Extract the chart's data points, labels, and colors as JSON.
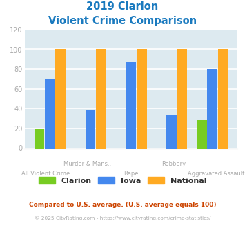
{
  "title_line1": "2019 Clarion",
  "title_line2": "Violent Crime Comparison",
  "title_color": "#1a7abf",
  "clarion": [
    19,
    0,
    0,
    0,
    29
  ],
  "iowa": [
    70,
    39,
    87,
    33,
    80
  ],
  "national": [
    100,
    100,
    100,
    100,
    100
  ],
  "clarion_color": "#77cc22",
  "iowa_color": "#4488ee",
  "national_color": "#ffaa22",
  "ylim": [
    0,
    120
  ],
  "yticks": [
    0,
    20,
    40,
    60,
    80,
    100,
    120
  ],
  "plot_bg_color": "#ddeaf0",
  "outer_bg_color": "#ffffff",
  "grid_color": "#ffffff",
  "legend_labels": [
    "Clarion",
    "Iowa",
    "National"
  ],
  "row1_labels": [
    "",
    "Murder & Mans...",
    "",
    "Robbery",
    ""
  ],
  "row2_labels": [
    "All Violent Crime",
    "",
    "Rape",
    "",
    "Aggravated Assault"
  ],
  "footnote1": "Compared to U.S. average. (U.S. average equals 100)",
  "footnote2": "© 2025 CityRating.com - https://www.cityrating.com/crime-statistics/",
  "footnote1_color": "#cc4400",
  "footnote2_color": "#aaaaaa",
  "ytick_color": "#aaaaaa",
  "xtick_color": "#aaaaaa"
}
